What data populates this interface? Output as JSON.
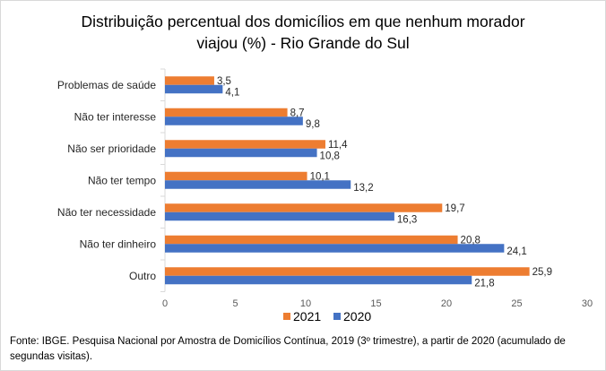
{
  "chart_data": {
    "type": "bar",
    "orientation": "horizontal",
    "title": "Distribuição percentual dos domicílios em que nenhum morador viajou (%) - Rio Grande do Sul",
    "title_lines": [
      "Distribuição percentual dos domicílios em que nenhum morador",
      "viajou (%) - Rio Grande do Sul"
    ],
    "categories": [
      "Problemas de saúde",
      "Não ter interesse",
      "Não ser prioridade",
      "Não ter tempo",
      "Não ter necessidade",
      "Não ter dinheiro",
      "Outro"
    ],
    "series": [
      {
        "name": "2021",
        "color": "#ED7D31",
        "values": [
          3.5,
          8.7,
          11.4,
          10.1,
          19.7,
          20.8,
          25.9
        ],
        "labels": [
          "3,5",
          "8,7",
          "11,4",
          "10,1",
          "19,7",
          "20,8",
          "25,9"
        ]
      },
      {
        "name": "2020",
        "color": "#4472C4",
        "values": [
          4.1,
          9.8,
          10.8,
          13.2,
          16.3,
          24.1,
          21.8
        ],
        "labels": [
          "4,1",
          "9,8",
          "10,8",
          "13,2",
          "16,3",
          "24,1",
          "21,8"
        ]
      }
    ],
    "xlabel": "",
    "ylabel": "",
    "xlim": [
      0,
      30
    ],
    "xticks": [
      0,
      5,
      10,
      15,
      20,
      25,
      30
    ],
    "xtick_labels": [
      "0",
      "5",
      "10",
      "15",
      "20",
      "25",
      "30"
    ],
    "grid": false,
    "legend_position": "bottom-center",
    "legend_order": [
      "2021",
      "2020"
    ]
  },
  "footer": {
    "source": "Fonte:  IBGE. Pesquisa Nacional por Amostra de Domicílios Contínua, 2019 (3º trimestre),  a partir de 2020 (acumulado de segundas visitas)."
  }
}
